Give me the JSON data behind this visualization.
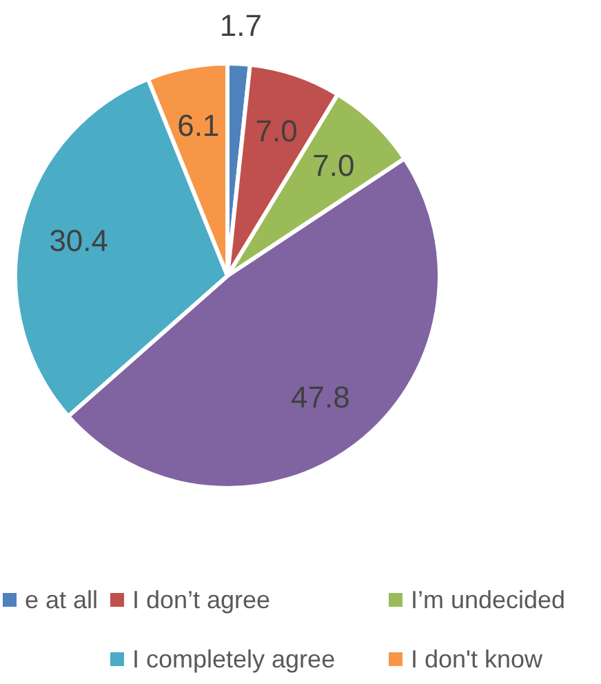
{
  "chart_data": {
    "type": "pie",
    "categories": [
      "e at all",
      "I don’t agree",
      "I’m undecided",
      null,
      "I completely agree",
      "I don't know"
    ],
    "values": [
      1.7,
      7.0,
      7.0,
      47.8,
      30.4,
      6.1
    ],
    "colors": [
      "#4f81bd",
      "#c0504d",
      "#9bbb59",
      "#8064a2",
      "#4bacc6",
      "#f79646"
    ],
    "value_labels": [
      "1.7",
      "7.0",
      "7.0",
      "47.8",
      "30.4",
      "6.1"
    ],
    "legend": "bottom"
  }
}
